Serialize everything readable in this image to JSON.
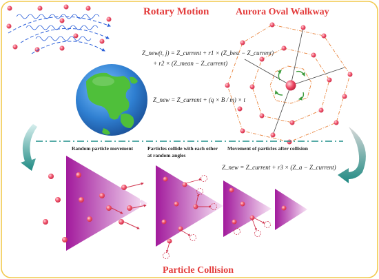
{
  "titles": {
    "rotary_motion": "Rotary Motion",
    "aurora_oval_walkway": "Aurora Oval Walkway",
    "particle_collision": "Particle Collision"
  },
  "captions": {
    "random_particle_movement": "Random particle movement",
    "particles_collide_line1": "Particles collide with each other",
    "particles_collide_line2": "at random angles",
    "movement_after_collision": "Movement of particles after collision"
  },
  "equations": {
    "eq1_line1": "Z_new(t, j) = Z_current + r1 × (Z_best − Z_current)",
    "eq1_line2": "+ r2 × (Z_mean − Z_current)",
    "eq2": "Z_new = Z_current + (q × B / m) × t",
    "eq3": "Z_new = Z_current + r3 × (Z_a − Z_current)"
  },
  "colors": {
    "frame_border": "#f2c94c",
    "title_red": "#e33b3b",
    "particle": "#ef4f6a",
    "octagon_dash": "#e8823a",
    "wave_blue": "#2b5fd9",
    "divider_teal": "#1e8f8a",
    "triangle_magenta": "#b01fa8",
    "arrow_gradient_dark": "#1f8a83",
    "earth_ocean": "#2f7fd1",
    "earth_land": "#4fbf3a"
  },
  "icons": {
    "earth": "earth-globe-icon",
    "curved_arrow": "curved-arrow-icon"
  }
}
